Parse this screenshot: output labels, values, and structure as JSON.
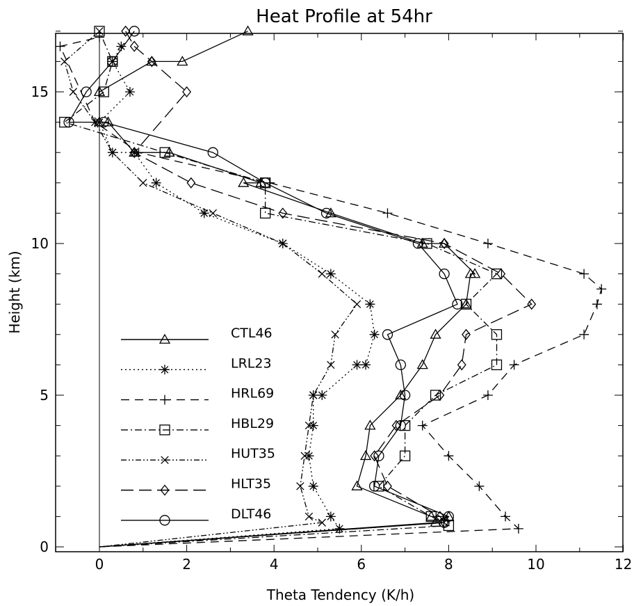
{
  "chart_data": {
    "type": "line",
    "title": "Heat Profile at 54hr",
    "xlabel": "Theta Tendency (K/h)",
    "ylabel": "Height (km)",
    "xlim": [
      -1,
      12
    ],
    "ylim": [
      0,
      17
    ],
    "xticks": [
      0,
      2,
      4,
      6,
      8,
      10,
      12
    ],
    "yticks": [
      0,
      5,
      10,
      15
    ],
    "grid": false,
    "legend_position": "lower-left",
    "series": [
      {
        "name": "CTL46",
        "marker": "triangle",
        "dash": "solid",
        "x": [
          0,
          7.7,
          8.0,
          7.6,
          5.9,
          6.1,
          6.2,
          6.9,
          7.4,
          7.7,
          8.4,
          8.5,
          8.6,
          7.9,
          7.4,
          5.3,
          3.3,
          3.7,
          1.6,
          0.8,
          0.2,
          0.0,
          0.0,
          1.2,
          1.9,
          3.4
        ],
        "y": [
          0,
          0.8,
          1,
          1,
          2,
          3,
          4,
          5,
          6,
          7,
          8,
          9,
          9,
          10,
          10,
          11,
          12,
          12,
          13,
          13,
          14,
          14,
          15,
          16,
          16,
          17
        ]
      },
      {
        "name": "LRL23",
        "marker": "asterisk",
        "dash": "dotted",
        "x": [
          0,
          5.5,
          5.3,
          4.9,
          4.8,
          4.9,
          4.9,
          5.1,
          5.9,
          6.1,
          6.3,
          6.2,
          5.3,
          4.2,
          2.4,
          1.3,
          0.8,
          0.3,
          0.0,
          0.7,
          0.3,
          0.5
        ],
        "y": [
          0,
          0.6,
          1,
          2,
          3,
          4,
          5,
          5,
          6,
          6,
          7,
          8,
          9,
          10,
          11,
          12,
          13,
          13,
          14,
          15,
          16,
          16.5
        ]
      },
      {
        "name": "HRL69",
        "marker": "plus",
        "dash": "dashed",
        "x": [
          0,
          9.6,
          9.3,
          8.7,
          8.0,
          7.4,
          8.9,
          9.5,
          11.1,
          11.4,
          11.5,
          11.1,
          8.9,
          6.6,
          3.9,
          0.9,
          -0.1,
          -0.9,
          0.0
        ],
        "y": [
          0,
          0.6,
          1,
          2,
          3,
          4,
          5,
          6,
          7,
          8,
          8.5,
          9,
          10,
          11,
          12,
          13,
          14,
          16.5,
          16.8
        ]
      },
      {
        "name": "HBL29",
        "marker": "square",
        "dash": "dashdot",
        "x": [
          0,
          8.0,
          7.6,
          6.4,
          7.0,
          7.0,
          7.7,
          9.1,
          9.1,
          8.4,
          9.1,
          7.5,
          3.8,
          3.8,
          1.5,
          -0.8,
          0.1,
          0.3,
          0.0
        ],
        "y": [
          0,
          0.7,
          1,
          2,
          3,
          4,
          5,
          6,
          7,
          8,
          9,
          10,
          11,
          12,
          13,
          14,
          15,
          16,
          17
        ]
      },
      {
        "name": "HUT35",
        "marker": "x",
        "dash": "dashdotdot",
        "x": [
          0,
          5.1,
          4.8,
          4.6,
          4.7,
          4.8,
          4.9,
          5.3,
          5.4,
          5.9,
          5.1,
          4.2,
          2.6,
          1.0,
          0.3,
          -0.1,
          -0.6,
          -0.8,
          0.0
        ],
        "y": [
          0,
          0.8,
          1,
          2,
          3,
          4,
          5,
          6,
          7,
          8,
          9,
          10,
          11,
          12,
          13,
          14,
          15,
          16,
          17
        ]
      },
      {
        "name": "HLT35",
        "marker": "diamond",
        "dash": "longdash",
        "x": [
          0,
          7.9,
          7.8,
          6.6,
          6.3,
          6.8,
          7.8,
          8.3,
          8.4,
          9.9,
          9.2,
          7.9,
          4.2,
          2.1,
          0.8,
          2.0,
          1.2,
          0.8,
          0.6
        ],
        "y": [
          0,
          0.8,
          1,
          2,
          3,
          4,
          5,
          6,
          7,
          8,
          9,
          10,
          11,
          12,
          13,
          15,
          16,
          16.5,
          17
        ]
      },
      {
        "name": "DLT46",
        "marker": "circle",
        "dash": "solid",
        "x": [
          0,
          7.9,
          8.0,
          6.3,
          6.4,
          6.9,
          7.0,
          6.9,
          6.6,
          8.2,
          7.9,
          7.3,
          5.2,
          3.8,
          2.6,
          0.1,
          -0.7,
          -0.3,
          0.3,
          0.8
        ],
        "y": [
          0,
          0.8,
          1,
          2,
          3,
          4,
          5,
          6,
          7,
          8,
          9,
          10,
          11,
          12,
          13,
          14,
          14,
          15,
          16,
          17
        ]
      }
    ]
  }
}
